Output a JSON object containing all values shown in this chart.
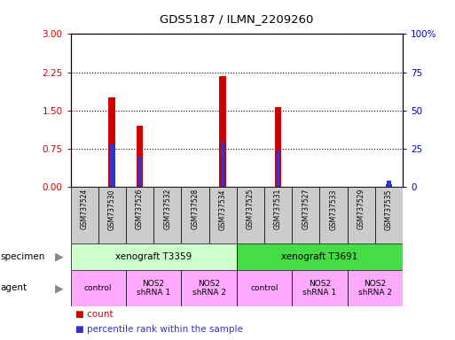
{
  "title": "GDS5187 / ILMN_2209260",
  "samples": [
    "GSM737524",
    "GSM737530",
    "GSM737526",
    "GSM737532",
    "GSM737528",
    "GSM737534",
    "GSM737525",
    "GSM737531",
    "GSM737527",
    "GSM737533",
    "GSM737529",
    "GSM737535"
  ],
  "count_values": [
    0.0,
    1.75,
    1.2,
    0.0,
    0.0,
    2.17,
    0.0,
    1.57,
    0.0,
    0.0,
    0.0,
    0.06
  ],
  "percentile_values": [
    0.0,
    0.28,
    0.2,
    0.0,
    0.0,
    0.29,
    0.0,
    0.24,
    0.0,
    0.0,
    0.0,
    0.04
  ],
  "ylim_left": [
    0,
    3
  ],
  "ylim_right": [
    0,
    100
  ],
  "yticks_left": [
    0,
    0.75,
    1.5,
    2.25,
    3
  ],
  "yticks_right": [
    0,
    25,
    50,
    75,
    100
  ],
  "bar_color_count": "#cc0000",
  "bar_color_percentile": "#3333cc",
  "bar_width": 0.25,
  "specimen_groups": [
    {
      "label": "xenograft T3359",
      "start": 0,
      "end": 5,
      "color": "#ccffcc"
    },
    {
      "label": "xenograft T3691",
      "start": 6,
      "end": 11,
      "color": "#44dd44"
    }
  ],
  "agent_groups": [
    {
      "label": "control",
      "start": 0,
      "end": 1,
      "color": "#ffaaff"
    },
    {
      "label": "NOS2\nshRNA 1",
      "start": 2,
      "end": 3,
      "color": "#ffaaff"
    },
    {
      "label": "NOS2\nshRNA 2",
      "start": 4,
      "end": 5,
      "color": "#ffaaff"
    },
    {
      "label": "control",
      "start": 6,
      "end": 7,
      "color": "#ffaaff"
    },
    {
      "label": "NOS2\nshRNA 1",
      "start": 8,
      "end": 9,
      "color": "#ffaaff"
    },
    {
      "label": "NOS2\nshRNA 2",
      "start": 10,
      "end": 11,
      "color": "#ffaaff"
    }
  ],
  "left_axis_color": "#cc0000",
  "right_axis_color": "#0000cc",
  "grid_color": "#000000",
  "background_color": "#ffffff",
  "sample_bg_color": "#cccccc"
}
